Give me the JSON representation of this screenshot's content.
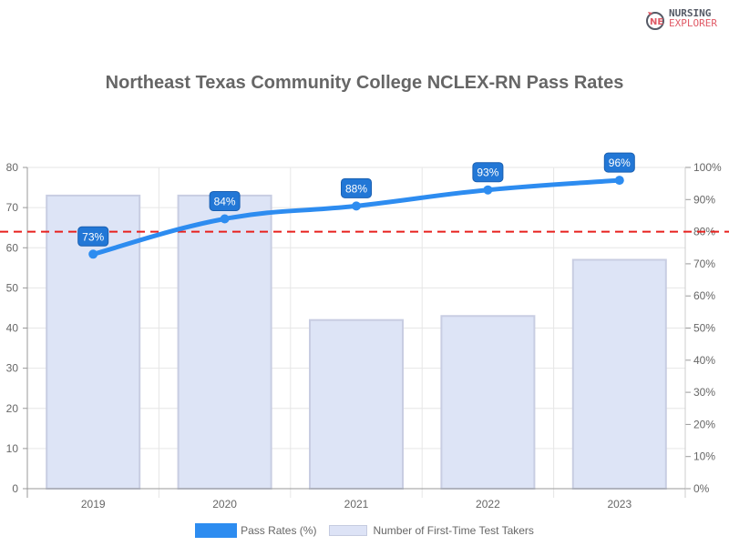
{
  "brand": {
    "line1": "NURSING",
    "line2": "EXPLORER",
    "icon": "nursing-explorer-logo-icon"
  },
  "title": "Northeast Texas Community College NCLEX-RN Pass Rates",
  "legend": {
    "line_label": "Pass Rates (%)",
    "bar_label": "Number of First-Time Test Takers"
  },
  "colors": {
    "line": "#2d8cf0",
    "label_bg": "#2277d6",
    "bar_fill": "#dde4f6",
    "bar_border": "#c8cde2",
    "threshold": "#e8201d",
    "grid": "#e6e6e6",
    "axis_text": "#666666"
  },
  "chart_data": {
    "type": "bar+line",
    "title": "Northeast Texas Community College NCLEX-RN Pass Rates",
    "categories": [
      "2019",
      "2020",
      "2021",
      "2022",
      "2023"
    ],
    "series": [
      {
        "name": "Number of First-Time Test Takers",
        "type": "bar",
        "axis": "left",
        "values": [
          73,
          73,
          42,
          43,
          57
        ]
      },
      {
        "name": "Pass Rates (%)",
        "type": "line",
        "axis": "right",
        "values": [
          73,
          84,
          88,
          93,
          96
        ],
        "labels": [
          "73%",
          "84%",
          "88%",
          "93%",
          "96%"
        ]
      }
    ],
    "threshold": {
      "axis": "right",
      "value": 80,
      "style": "dashed",
      "color": "#e8201d"
    },
    "left_axis": {
      "ylim": [
        0,
        80
      ],
      "ticks": [
        "0",
        "10",
        "20",
        "30",
        "40",
        "50",
        "60",
        "70",
        "80"
      ]
    },
    "right_axis": {
      "ylim": [
        0,
        100
      ],
      "ticks": [
        "0%",
        "10%",
        "20%",
        "30%",
        "40%",
        "50%",
        "60%",
        "70%",
        "80%",
        "90%",
        "100%"
      ]
    },
    "xlabel": "",
    "ylabel": "",
    "grid": true,
    "legend_position": "bottom"
  }
}
